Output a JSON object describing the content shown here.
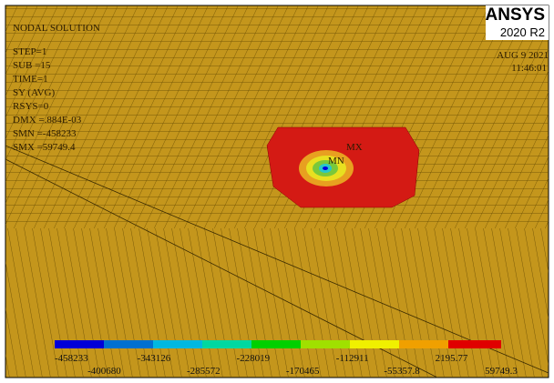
{
  "header": {
    "title": "NODAL SOLUTION",
    "logo": "ANSYS",
    "version": "2020 R2",
    "date": "AUG  9 2021",
    "time": "11:46:01"
  },
  "info": [
    "STEP=1",
    "SUB =15",
    "TIME=1",
    "SY       (AVG)",
    "RSYS=0",
    "DMX =.884E-03",
    "SMN =-458233",
    "SMX =59749.4"
  ],
  "markers": {
    "max": "MX",
    "min": "MN"
  },
  "legend": {
    "labels": [
      "-458233",
      "-400680",
      "-343126",
      "-285572",
      "-228019",
      "-170465",
      "-112911",
      "-55357.8",
      "2195.77",
      "59749.3"
    ]
  }
}
